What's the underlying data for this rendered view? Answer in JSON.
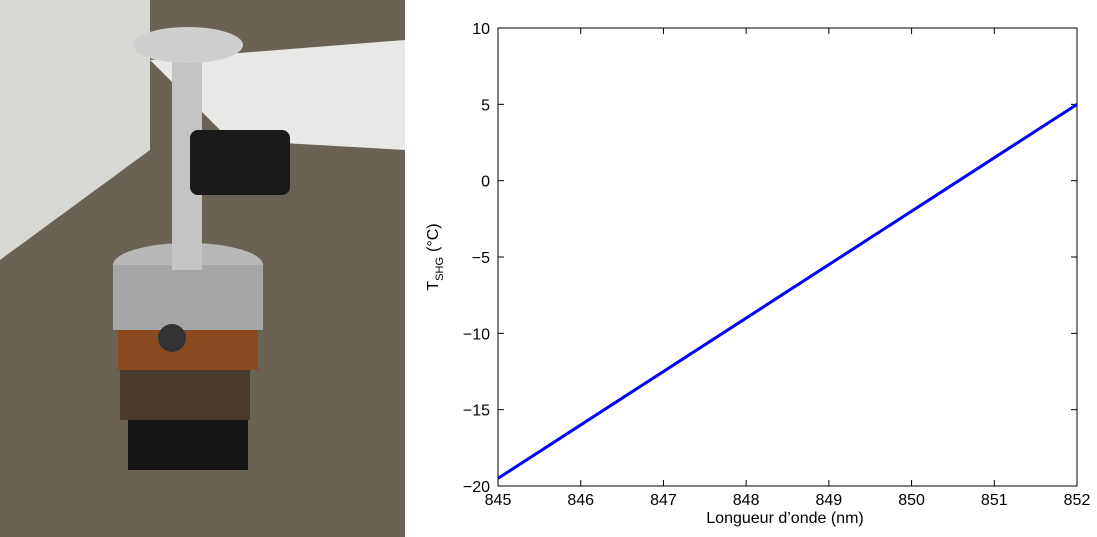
{
  "chart_data": {
    "type": "line",
    "x_label": "Longueur d’onde (nm)",
    "y_label": {
      "main": "T",
      "sub": "SHG",
      "unit": "(°C)"
    },
    "x": [
      845,
      852
    ],
    "series": [
      {
        "color": "#0000ff",
        "values": [
          -19.5,
          5
        ]
      }
    ],
    "xlim": [
      845,
      852
    ],
    "xticks": [
      845,
      846,
      847,
      848,
      849,
      850,
      851,
      852
    ],
    "ylim": [
      -20,
      10
    ],
    "yticks": [
      {
        "value": -20,
        "label": "−20"
      },
      {
        "value": -15,
        "label": "−15"
      },
      {
        "value": -10,
        "label": "−10"
      },
      {
        "value": -5,
        "label": "−5"
      },
      0,
      5,
      10
    ],
    "grid": false
  }
}
